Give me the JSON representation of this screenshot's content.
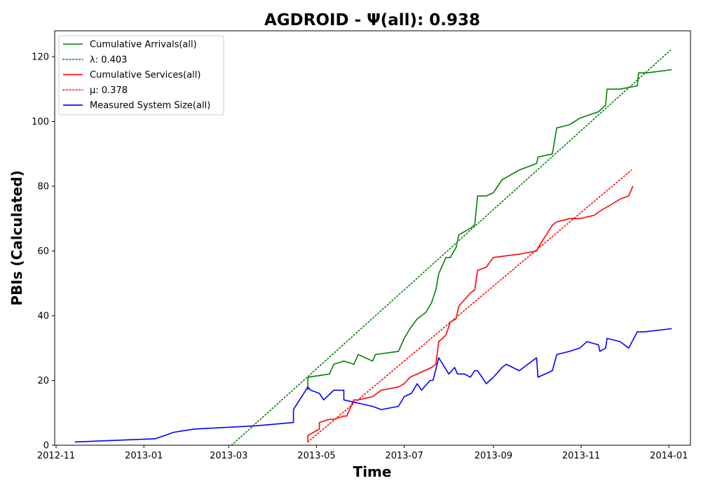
{
  "chart_data": {
    "type": "line",
    "title": "AGDROID -  Ψ(all): 0.938",
    "xlabel": "Time",
    "ylabel": "PBIs (Calculated)",
    "xlim": [
      "2012-10-31",
      "2014-01-16"
    ],
    "ylim": [
      0,
      128
    ],
    "x_ticks": [
      "2012-11",
      "2013-01",
      "2013-03",
      "2013-05",
      "2013-07",
      "2013-09",
      "2013-11",
      "2014-01"
    ],
    "y_ticks": [
      0,
      20,
      40,
      60,
      80,
      100,
      120
    ],
    "grid": false,
    "legend_position": "upper-left",
    "colors": {
      "arrivals": "#008000",
      "services": "#ff0000",
      "system_size": "#0000ff",
      "axes": "#000000"
    },
    "series": [
      {
        "name": "Cumulative Arrivals(all)",
        "style": "solid",
        "color": "#008000",
        "x": [
          "2013-04-25",
          "2013-04-25",
          "2013-05-10",
          "2013-05-13",
          "2013-05-20",
          "2013-05-27",
          "2013-05-30",
          "2013-06-09",
          "2013-06-11",
          "2013-06-27",
          "2013-07-01",
          "2013-07-05",
          "2013-07-10",
          "2013-07-16",
          "2013-07-20",
          "2013-07-23",
          "2013-07-25",
          "2013-07-30",
          "2013-08-02",
          "2013-08-06",
          "2013-08-08",
          "2013-08-16",
          "2013-08-19",
          "2013-08-21",
          "2013-08-27",
          "2013-09-01",
          "2013-09-04",
          "2013-09-07",
          "2013-09-19",
          "2013-10-01",
          "2013-10-02",
          "2013-10-12",
          "2013-10-15",
          "2013-10-24",
          "2013-10-31",
          "2013-11-13",
          "2013-11-18",
          "2013-11-19",
          "2013-11-28",
          "2013-12-10",
          "2013-12-11",
          "2013-12-17",
          "2014-01-03"
        ],
        "y": [
          17,
          21,
          22,
          25,
          26,
          25,
          28,
          26,
          28,
          29,
          33,
          36,
          39,
          41,
          44,
          48,
          53,
          58,
          58,
          61,
          65,
          67,
          68,
          77,
          77,
          78,
          80,
          82,
          85,
          87,
          89,
          90,
          98,
          99,
          101,
          103,
          105,
          110,
          110,
          111,
          115,
          115,
          116
        ]
      },
      {
        "name": "λ: 0.403",
        "style": "dotted",
        "color": "#008000",
        "x": [
          "2013-03-03",
          "2014-01-02"
        ],
        "y": [
          0,
          122
        ]
      },
      {
        "name": "Cumulative Services(all)",
        "style": "solid",
        "color": "#ff0000",
        "x": [
          "2013-04-25",
          "2013-04-25",
          "2013-05-03",
          "2013-05-03",
          "2013-05-10",
          "2013-05-13",
          "2013-05-20",
          "2013-05-22",
          "2013-05-27",
          "2013-05-30",
          "2013-06-09",
          "2013-06-15",
          "2013-06-27",
          "2013-07-01",
          "2013-07-05",
          "2013-07-20",
          "2013-07-23",
          "2013-07-25",
          "2013-07-30",
          "2013-08-02",
          "2013-08-06",
          "2013-08-08",
          "2013-08-16",
          "2013-08-19",
          "2013-08-21",
          "2013-08-27",
          "2013-09-01",
          "2013-09-19",
          "2013-10-01",
          "2013-10-02",
          "2013-10-12",
          "2013-10-15",
          "2013-10-24",
          "2013-10-31",
          "2013-11-10",
          "2013-11-13",
          "2013-11-28",
          "2013-12-04",
          "2013-12-07"
        ],
        "y": [
          1,
          3,
          5,
          7,
          8,
          8,
          9,
          9,
          14,
          14,
          15,
          17,
          18,
          19,
          21,
          24,
          25,
          32,
          34,
          38,
          39,
          43,
          47,
          48,
          54,
          55,
          58,
          59,
          60,
          61,
          68,
          69,
          70,
          70,
          71,
          72,
          76,
          77,
          80
        ]
      },
      {
        "name": "μ: 0.378",
        "style": "dotted",
        "color": "#ff0000",
        "x": [
          "2013-04-25",
          "2013-12-06"
        ],
        "y": [
          1,
          85
        ]
      },
      {
        "name": "Measured System Size(all)",
        "style": "solid",
        "color": "#0000ff",
        "x": [
          "2012-11-14",
          "2013-01-09",
          "2013-01-22",
          "2013-02-05",
          "2013-03-20",
          "2013-04-15",
          "2013-04-15",
          "2013-04-25",
          "2013-04-27",
          "2013-05-03",
          "2013-05-06",
          "2013-05-13",
          "2013-05-20",
          "2013-05-20",
          "2013-05-30",
          "2013-06-09",
          "2013-06-15",
          "2013-06-27",
          "2013-07-01",
          "2013-07-06",
          "2013-07-10",
          "2013-07-13",
          "2013-07-19",
          "2013-07-21",
          "2013-07-25",
          "2013-08-01",
          "2013-08-05",
          "2013-08-07",
          "2013-08-12",
          "2013-08-16",
          "2013-08-19",
          "2013-08-21",
          "2013-08-27",
          "2013-09-01",
          "2013-09-07",
          "2013-09-10",
          "2013-09-19",
          "2013-10-01",
          "2013-10-02",
          "2013-10-12",
          "2013-10-15",
          "2013-10-24",
          "2013-10-31",
          "2013-11-05",
          "2013-11-13",
          "2013-11-14",
          "2013-11-18",
          "2013-11-19",
          "2013-11-28",
          "2013-12-01",
          "2013-12-04",
          "2013-12-10",
          "2013-12-15",
          "2014-01-03"
        ],
        "y": [
          1,
          2,
          4,
          5,
          6,
          7,
          11,
          18,
          17,
          16,
          14,
          17,
          17,
          14,
          13,
          12,
          11,
          12,
          15,
          16,
          19,
          17,
          20,
          20,
          27,
          22,
          24,
          22,
          22,
          21,
          23,
          23,
          19,
          21,
          24,
          25,
          23,
          27,
          21,
          23,
          28,
          29,
          30,
          32,
          31,
          29,
          30,
          33,
          32,
          31,
          30,
          35,
          35,
          36
        ]
      }
    ]
  }
}
